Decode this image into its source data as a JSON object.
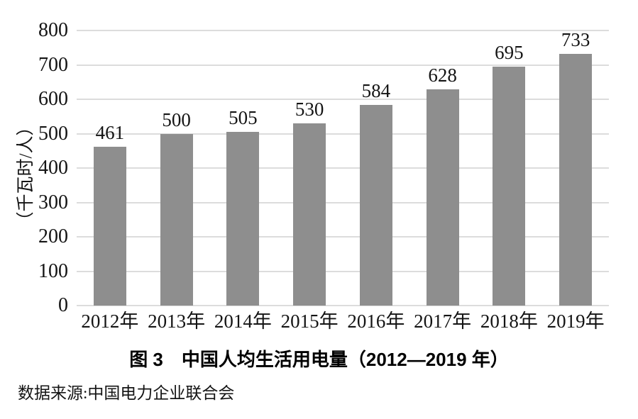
{
  "chart_data": {
    "type": "bar",
    "categories": [
      "2012年",
      "2013年",
      "2014年",
      "2015年",
      "2016年",
      "2017年",
      "2018年",
      "2019年"
    ],
    "values": [
      461,
      500,
      505,
      530,
      584,
      628,
      695,
      733
    ],
    "title": "图 3　中国人均生活用电量（2012—2019 年）",
    "xlabel": "",
    "ylabel": "（千瓦时/人）",
    "ylim": [
      0,
      800
    ],
    "yticks": [
      0,
      100,
      200,
      300,
      400,
      500,
      600,
      700,
      800
    ],
    "grid": true,
    "legend": "none",
    "bar_color": "#8e8e8e",
    "gridline_color": "#dcdcdc",
    "text_color": "#141414"
  },
  "source_note": "数据来源:中国电力企业联合会"
}
